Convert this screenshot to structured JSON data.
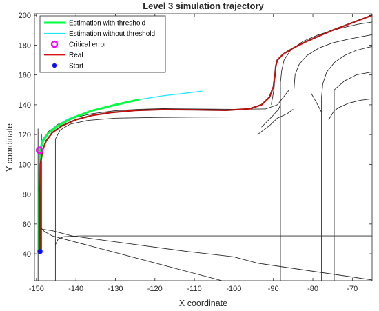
{
  "colors": {
    "with_threshold": "#00ff3c",
    "without_threshold": "#1ee8ff",
    "critical": "#ff00ff",
    "real": "#d41111",
    "real_dark": "#8a0c0c",
    "start": "#1010ee",
    "track": "#2b2b2b",
    "axis": "#262626"
  },
  "chart_data": {
    "type": "line",
    "title": "Level 3 simulation trajectory",
    "xlabel": "X coordinate",
    "ylabel": "Y coordinate",
    "xlim": [
      -150.5,
      -65
    ],
    "ylim": [
      22,
      201
    ],
    "xticks": [
      -150,
      -140,
      -130,
      -120,
      -110,
      -100,
      -90,
      -80,
      -70
    ],
    "yticks": [
      40,
      60,
      80,
      100,
      120,
      140,
      160,
      180,
      200
    ],
    "grid": false,
    "legend_position": "top-left",
    "legend": [
      {
        "label": "Estimation with threshold",
        "marker": "line",
        "color_key": "with_threshold"
      },
      {
        "label": "Estimation without threshold",
        "marker": "line",
        "color_key": "without_threshold"
      },
      {
        "label": "Critical error",
        "marker": "circle",
        "color_key": "critical"
      },
      {
        "label": "Real",
        "marker": "line",
        "color_key": "real"
      },
      {
        "label": "Start",
        "marker": "dot",
        "color_key": "start"
      }
    ],
    "series": [
      {
        "name": "Estimation with threshold",
        "kind": "line",
        "color_key": "with_threshold",
        "x": [
          -149.3,
          -149.3,
          -149.3,
          -149.2,
          -149.0,
          -148.3,
          -147.0,
          -144.5,
          -141.0,
          -136.0,
          -130.0,
          -124.0
        ],
        "y": [
          42,
          60,
          80,
          100,
          110,
          116,
          121,
          126,
          131,
          136,
          140,
          143.5
        ]
      },
      {
        "name": "Estimation without threshold",
        "kind": "line",
        "color_key": "without_threshold",
        "x": [
          -149.2,
          -148.5,
          -146.0,
          -142.0,
          -136.0,
          -130.0,
          -124.0,
          -118.0,
          -113.0,
          -108.0
        ],
        "y": [
          110,
          117,
          124,
          130.5,
          136,
          140,
          143.5,
          146,
          147.5,
          149.2
        ]
      },
      {
        "name": "Real",
        "kind": "line",
        "color_key": "real",
        "x": [
          -149.1,
          -149.1,
          -149.1,
          -149.0,
          -148.4,
          -147.5,
          -146.0,
          -143.5,
          -140.0,
          -136.0,
          -131.0,
          -125.0,
          -118.0,
          -110.0,
          -102.0,
          -96.0,
          -93.0,
          -91.0,
          -90.0,
          -89.6,
          -89.4,
          -89.0,
          -87.5,
          -85.0,
          -82.0,
          -78.5,
          -75.0,
          -71.0,
          -67.0,
          -65.0
        ],
        "y": [
          42,
          60,
          80,
          100,
          110,
          116,
          121.3,
          126,
          130,
          132.8,
          134.8,
          136.2,
          136.8,
          136.6,
          136.3,
          137.3,
          140,
          145,
          152,
          160,
          166,
          170,
          174,
          178,
          182,
          186,
          190,
          194,
          198,
          200
        ]
      },
      {
        "name": "Critical error",
        "kind": "point",
        "color_key": "critical",
        "x": [
          -149.2
        ],
        "y": [
          109.5
        ]
      },
      {
        "name": "Start",
        "kind": "point",
        "color_key": "start",
        "x": [
          -149.1
        ],
        "y": [
          41.5
        ]
      }
    ],
    "track_lines": [
      {
        "x": [
          -148.7,
          -148.7
        ],
        "y": [
          42,
          120
        ]
      },
      {
        "x": [
          -149.6,
          -149.6
        ],
        "y": [
          22,
          124
        ]
      },
      {
        "x": [
          -148.2,
          -147.0,
          -144.5,
          -141.0,
          -136.0,
          -130.0,
          -124.0,
          -118.0,
          -110.0,
          -100.0,
          -92.0,
          -89.0,
          -86.0
        ],
        "y": [
          117,
          122,
          127,
          131,
          134,
          136,
          137,
          137.4,
          137.2,
          137.0,
          137.2,
          140,
          150
        ]
      },
      {
        "x": [
          -145.2,
          -145.2,
          -144.0,
          -141.5,
          -137.0,
          -130.0,
          -120.0,
          -110.0,
          -100.0,
          -65.0
        ],
        "y": [
          22,
          117,
          123,
          127,
          129.5,
          131,
          131.5,
          131.7,
          131.8,
          131.8
        ]
      },
      {
        "x": [
          -149.0,
          -148.0,
          -146.0,
          -103.0
        ],
        "y": [
          58,
          55,
          52,
          22
        ]
      },
      {
        "x": [
          -148.5,
          -146.0,
          -141.0,
          -126.0,
          -112.0,
          -100.0,
          -94.0,
          -65.0
        ],
        "y": [
          56.5,
          55.5,
          52,
          46.6,
          41.6,
          38,
          33.7,
          22.5
        ]
      },
      {
        "x": [
          -145.2,
          -144.5,
          -143.0,
          -139.0,
          -120.0,
          -100.0,
          -65.0
        ],
        "y": [
          46,
          50,
          51.5,
          52,
          52,
          52,
          52
        ]
      },
      {
        "x": [
          -90.5,
          -90.5,
          -90.2,
          -89.8,
          -89.6,
          -89.4,
          -89.0,
          -87.5,
          -85.0,
          -82.0,
          -78.5,
          -75.0,
          -71.0,
          -67.0,
          -65.0
        ],
        "y": [
          140,
          141,
          145,
          152,
          160,
          166,
          170,
          174,
          178,
          182,
          186,
          190,
          194,
          198,
          200
        ]
      },
      {
        "x": [
          -88.2,
          -88.2,
          -87.9,
          -87.3,
          -85.5,
          -82.5,
          -79.0,
          -75.5,
          -72.0,
          -68.5,
          -65.0
        ],
        "y": [
          22,
          155,
          163,
          170,
          177,
          182.5,
          186.5,
          189.5,
          192,
          194,
          195.5
        ]
      },
      {
        "x": [
          -84.8,
          -84.8,
          -84.5,
          -83.5,
          -81.5,
          -78.5,
          -75.0,
          -71.0,
          -67.0,
          -65.0
        ],
        "y": [
          22,
          150,
          160,
          167,
          173,
          178,
          181.5,
          184,
          186,
          187
        ]
      },
      {
        "x": [
          -77.8,
          -77.8,
          -77.5,
          -76.5,
          -74.5,
          -72.0,
          -69.0,
          -66.0,
          -65.0
        ],
        "y": [
          22,
          145,
          154,
          162,
          168.5,
          173,
          176.5,
          178.5,
          179
        ]
      },
      {
        "x": [
          -74.6,
          -74.6,
          -74.6
        ],
        "y": [
          22,
          140,
          150
        ]
      },
      {
        "x": [
          -93.0,
          -91.5,
          -90.0,
          -88.7,
          -88.2
        ],
        "y": [
          125,
          129,
          133,
          137,
          140
        ]
      },
      {
        "x": [
          -80.5,
          -79.0,
          -77.8
        ],
        "y": [
          148,
          141,
          135
        ]
      },
      {
        "x": [
          -74.6,
          -72.0,
          -69.0,
          -65.0
        ],
        "y": [
          150,
          156,
          160,
          162
        ]
      },
      {
        "x": [
          -94.0,
          -91.0,
          -89.0,
          -86.5,
          -85.0
        ],
        "y": [
          120,
          126,
          131,
          134,
          137
        ]
      },
      {
        "x": [
          -76.0,
          -74.6,
          -73.5,
          -71.0,
          -68.0,
          -65.0
        ],
        "y": [
          130,
          136,
          138,
          141,
          143,
          144
        ]
      }
    ]
  }
}
